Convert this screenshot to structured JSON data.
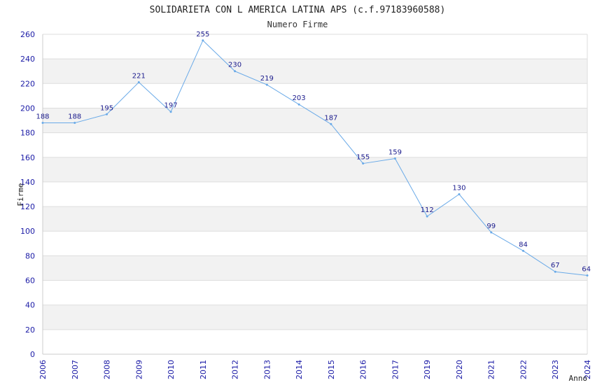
{
  "chart_data": {
    "type": "line",
    "title": "SOLIDARIETA CON L AMERICA LATINA APS (c.f.97183960588)",
    "subtitle": "Numero Firme",
    "xlabel": "Anno",
    "ylabel": "Firme",
    "ylim": [
      0,
      260
    ],
    "ytick_step": 20,
    "categories": [
      "2006",
      "2007",
      "2008",
      "2009",
      "2010",
      "2011",
      "2012",
      "2013",
      "2014",
      "2015",
      "2016",
      "2017",
      "2019",
      "2020",
      "2021",
      "2022",
      "2023",
      "2024"
    ],
    "series": [
      {
        "name": "Numero Firme",
        "values": [
          188,
          188,
          195,
          221,
          197,
          255,
          230,
          219,
          203,
          187,
          155,
          159,
          112,
          130,
          99,
          84,
          67,
          64
        ]
      }
    ],
    "grid": true
  },
  "colors": {
    "line": "#6aaae8",
    "band": "#f2f2f2",
    "grid": "#dddddd",
    "tick_text": "#1a1aa6",
    "label_text": "#1a1a8c"
  }
}
